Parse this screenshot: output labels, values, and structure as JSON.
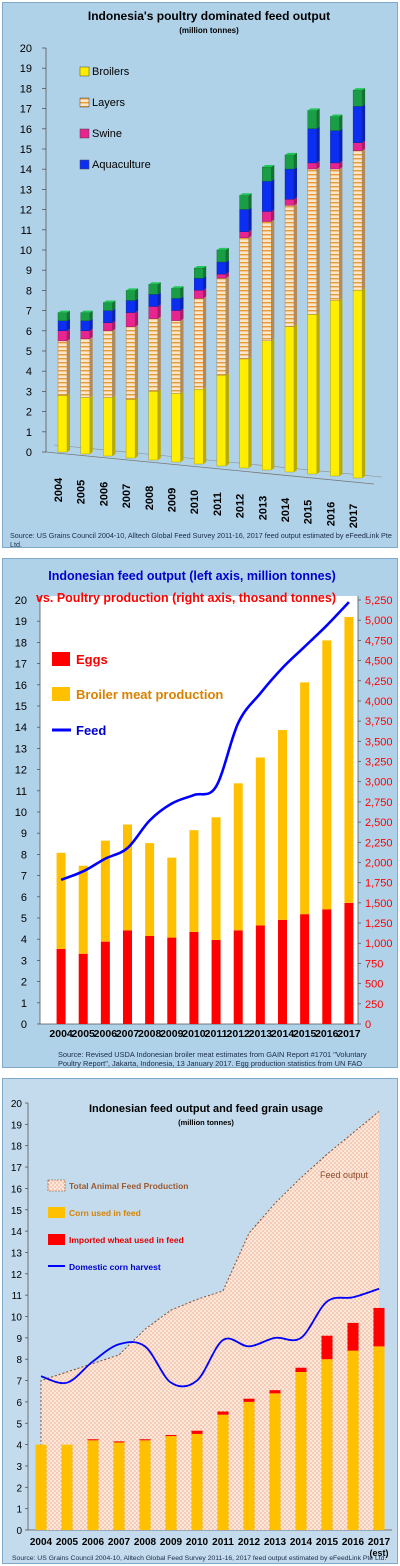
{
  "charts_meta": [
    "poultry-feed-stacked",
    "feed-vs-poultry",
    "feed-grain-usage"
  ],
  "chart_data": [
    {
      "type": "bar",
      "stacked": true,
      "title": "Indonesia's poultry dominated feed output",
      "subtitle": "(million tonnes)",
      "categories": [
        "2004",
        "2005",
        "2006",
        "2007",
        "2008",
        "2009",
        "2010",
        "2011",
        "2012",
        "2013",
        "2014",
        "2015",
        "2016",
        "2017"
      ],
      "series": [
        {
          "name": "Broilers",
          "color": "#ffee00",
          "values": [
            2.8,
            2.8,
            2.9,
            2.9,
            3.4,
            3.4,
            3.7,
            4.5,
            5.4,
            6.4,
            7.2,
            7.9,
            8.7,
            9.3
          ]
        },
        {
          "name": "Layers",
          "color": "#f4c181",
          "values": [
            2.7,
            2.9,
            3.3,
            3.6,
            3.6,
            3.6,
            4.5,
            4.8,
            6.0,
            5.9,
            6.0,
            7.2,
            6.5,
            6.9
          ]
        },
        {
          "name": "Swine",
          "color": "#e8258f",
          "values": [
            0.5,
            0.4,
            0.4,
            0.7,
            0.6,
            0.5,
            0.4,
            0.2,
            0.3,
            0.5,
            0.3,
            0.3,
            0.3,
            0.4
          ]
        },
        {
          "name": "Aquaculture",
          "color": "#0b2ef2",
          "values": [
            0.5,
            0.5,
            0.6,
            0.6,
            0.6,
            0.6,
            0.6,
            0.6,
            1.1,
            1.5,
            1.5,
            1.7,
            1.6,
            1.8
          ]
        },
        {
          "name": "",
          "color": "#1a9e45",
          "values": [
            0.4,
            0.4,
            0.4,
            0.5,
            0.5,
            0.5,
            0.5,
            0.6,
            0.7,
            0.7,
            0.7,
            0.9,
            0.7,
            0.8
          ]
        }
      ],
      "ylim": [
        0,
        20
      ],
      "yticks": [
        "0",
        "1",
        "2",
        "3",
        "4",
        "5",
        "6",
        "7",
        "8",
        "9",
        "10",
        "11",
        "12",
        "13",
        "14",
        "15",
        "16",
        "17",
        "18",
        "19",
        "20"
      ],
      "legend_position": "top-left",
      "grid": false,
      "source": "Source: US Grains Council 2004-10, Alltech Global Feed Survey 2011-16, 2017 feed output estimated by eFeedLink Pte Ltd."
    },
    {
      "type": "bar",
      "stacked": true,
      "title": "Indonesian feed output (left axis, million tonnes)",
      "subtitle": "vs. Poultry production (right axis, thosand tonnes)",
      "categories": [
        "2004",
        "2005",
        "2006",
        "2007",
        "2008",
        "2009",
        "2010",
        "2011",
        "2012",
        "2013",
        "2014",
        "2015",
        "2016",
        "2017"
      ],
      "series": [
        {
          "name": "Eggs",
          "color": "#ff0000",
          "values": [
            930,
            870,
            1020,
            1160,
            1090,
            1070,
            1140,
            1040,
            1160,
            1220,
            1290,
            1360,
            1420,
            1500
          ]
        },
        {
          "name": "Broiler meat production",
          "color": "#ffc000",
          "values": [
            1190,
            1090,
            1250,
            1310,
            1150,
            990,
            1260,
            1520,
            1820,
            2080,
            2350,
            2870,
            3330,
            3540
          ]
        }
      ],
      "line": {
        "name": "Feed",
        "color": "#0000ff",
        "axis": "left",
        "values": [
          6.8,
          7.2,
          7.8,
          8.3,
          9.6,
          10.4,
          10.8,
          11.2,
          14.2,
          15.6,
          16.8,
          17.8,
          18.8,
          19.9
        ]
      },
      "ylim_left": [
        0,
        20
      ],
      "ylim_right": [
        0,
        5250
      ],
      "yticks_left": [
        "0",
        "1",
        "2",
        "3",
        "4",
        "5",
        "6",
        "7",
        "8",
        "9",
        "10",
        "11",
        "12",
        "13",
        "14",
        "15",
        "16",
        "17",
        "18",
        "19",
        "20"
      ],
      "yticks_right": [
        "0",
        "250",
        "500",
        "750",
        "1,000",
        "1,250",
        "1,500",
        "1,750",
        "2,000",
        "2,250",
        "2,500",
        "2,750",
        "3,000",
        "3,250",
        "3,500",
        "3,750",
        "4,000",
        "4,250",
        "4,500",
        "4,750",
        "5,000",
        "5,250"
      ],
      "legend_position": "top-left",
      "grid": false,
      "source": "Source: Revised USDA Indonesian broiler meat estimates from GAIN Report #1701  \"Voluntary  Poultry Report\", Jakarta, Indonesia, 13 January 2017. Egg production statistics from UN FAO"
    },
    {
      "type": "area",
      "title": "Indonesian feed output and feed grain usage",
      "subtitle": "(million tonnes)",
      "categories": [
        "2004",
        "2005",
        "2006",
        "2007",
        "2008",
        "2009",
        "2010",
        "2011",
        "2012",
        "2013",
        "2014",
        "2015",
        "2016",
        "2017"
      ],
      "category_note": "(est)",
      "area": {
        "name": "Total Animal Feed Production",
        "color": "#f7c9a3",
        "values": [
          7.0,
          7.4,
          7.8,
          8.2,
          9.4,
          10.3,
          10.8,
          11.2,
          13.9,
          15.3,
          16.5,
          17.6,
          18.6,
          19.6
        ]
      },
      "area_label": "Feed output",
      "series": [
        {
          "name": "Corn used in feed",
          "color": "#ffc000",
          "values": [
            4.0,
            4.0,
            4.2,
            4.1,
            4.2,
            4.4,
            4.5,
            5.4,
            6.0,
            6.4,
            7.4,
            8.0,
            8.4,
            8.6
          ]
        },
        {
          "name": "Imported wheat used in feed",
          "color": "#ff0000",
          "values": [
            0,
            0,
            0.05,
            0.05,
            0.05,
            0.05,
            0.15,
            0.15,
            0.15,
            0.15,
            0.2,
            1.1,
            1.3,
            1.8
          ]
        }
      ],
      "line": {
        "name": "Domestic corn harvest",
        "color": "#0000ff",
        "values": [
          7.2,
          6.9,
          7.9,
          8.7,
          8.6,
          6.9,
          7.0,
          8.9,
          8.6,
          9.0,
          9.0,
          10.7,
          10.9,
          11.3
        ]
      },
      "ylim": [
        0,
        20
      ],
      "yticks": [
        "0",
        "1",
        "2",
        "3",
        "4",
        "5",
        "6",
        "7",
        "8",
        "9",
        "10",
        "11",
        "12",
        "13",
        "14",
        "15",
        "16",
        "17",
        "18",
        "19",
        "20"
      ],
      "legend_position": "top-left",
      "grid": false,
      "source": "Source: US Grains Council 2004-10, Alltech Global Feed Survey 2011-16, 2017 feed output estimated by eFeedLink Pte Ltd."
    }
  ]
}
